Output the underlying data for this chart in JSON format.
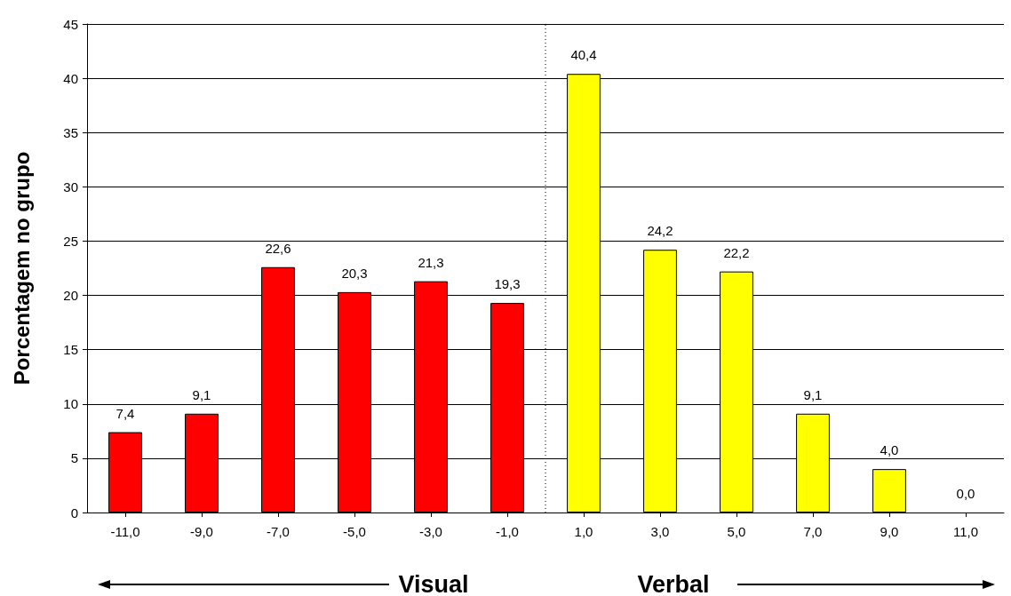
{
  "chart_data": {
    "type": "bar",
    "ylabel": "Porcentagem no grupo",
    "x": [
      -11,
      -9,
      -7,
      -5,
      -3,
      -1,
      1,
      3,
      5,
      7,
      9,
      11
    ],
    "values": [
      7.4,
      9.1,
      22.6,
      20.3,
      21.3,
      19.3,
      40.4,
      24.2,
      22.2,
      9.1,
      4.0,
      0.0
    ],
    "value_labels": [
      "7,4",
      "9,1",
      "22,6",
      "20,3",
      "21,3",
      "19,3",
      "40,4",
      "24,2",
      "22,2",
      "9,1",
      "4,0",
      "0,0"
    ],
    "colors": [
      "#ff0000",
      "#ff0000",
      "#ff0000",
      "#ff0000",
      "#ff0000",
      "#ff0000",
      "#ffff00",
      "#ffff00",
      "#ffff00",
      "#ffff00",
      "#ffff00",
      "#ffff00"
    ],
    "xlim": [
      -12,
      12
    ],
    "xticks": [
      {
        "value": -11,
        "label": "-11,0"
      },
      {
        "value": -9,
        "label": "-9,0"
      },
      {
        "value": -7,
        "label": "-7,0"
      },
      {
        "value": -5,
        "label": "-5,0"
      },
      {
        "value": -3,
        "label": "-3,0"
      },
      {
        "value": -1,
        "label": "-1,0"
      },
      {
        "value": 1,
        "label": "1,0"
      },
      {
        "value": 3,
        "label": "3,0"
      },
      {
        "value": 5,
        "label": "5,0"
      },
      {
        "value": 7,
        "label": "7,0"
      },
      {
        "value": 9,
        "label": "9,0"
      },
      {
        "value": 11,
        "label": "11,0"
      }
    ],
    "ylim": [
      0,
      45
    ],
    "yticks": [
      0,
      5,
      10,
      15,
      20,
      25,
      30,
      35,
      40,
      45
    ],
    "grid": "y",
    "ref_lines": [
      {
        "axis": "x",
        "value": 0,
        "line_style": "dotted",
        "color": "#000000"
      }
    ],
    "annotations": [
      "Visual",
      "Verbal"
    ]
  }
}
